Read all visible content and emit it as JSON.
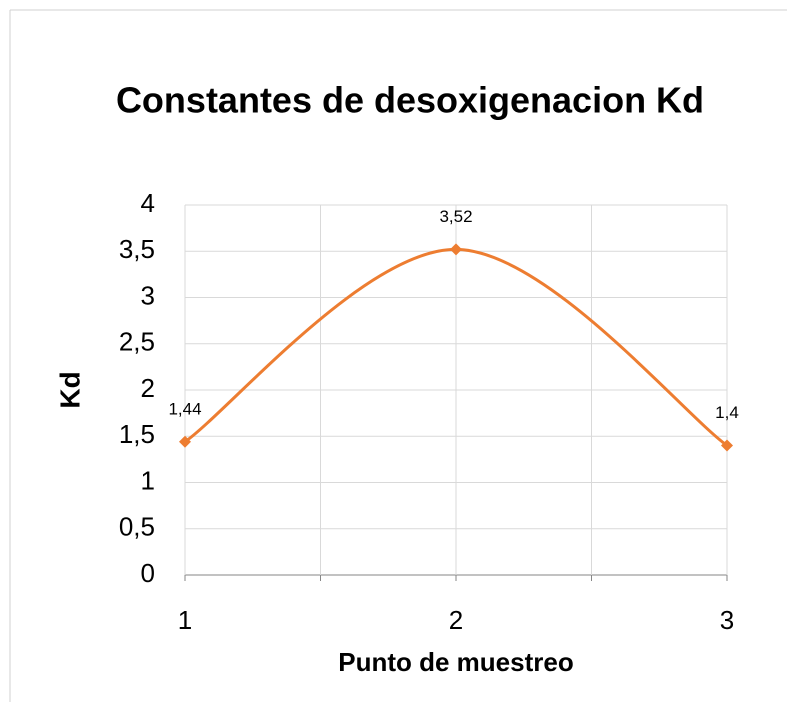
{
  "chart_data": {
    "type": "line",
    "title": "Constantes de desoxigenacion Kd",
    "xlabel": "Punto de muestreo",
    "ylabel": "Kd",
    "x": [
      1,
      2,
      3
    ],
    "xlim": [
      1,
      3
    ],
    "xticks": [
      1,
      2,
      3
    ],
    "ylim": [
      0,
      4
    ],
    "yticks": [
      0,
      {
        "value": 0.5,
        "label": "0,5"
      },
      1,
      {
        "value": 1.5,
        "label": "1,5"
      },
      2,
      {
        "value": 2.5,
        "label": "2,5"
      },
      3,
      {
        "value": 3.5,
        "label": "3,5"
      },
      4
    ],
    "grid": true,
    "smooth": true,
    "marker": "diamond",
    "series": [
      {
        "color": "#ED7D31",
        "values": [
          1.44,
          3.52,
          1.4
        ],
        "value_labels": [
          "1,44",
          "3,52",
          "1,4"
        ]
      }
    ]
  }
}
